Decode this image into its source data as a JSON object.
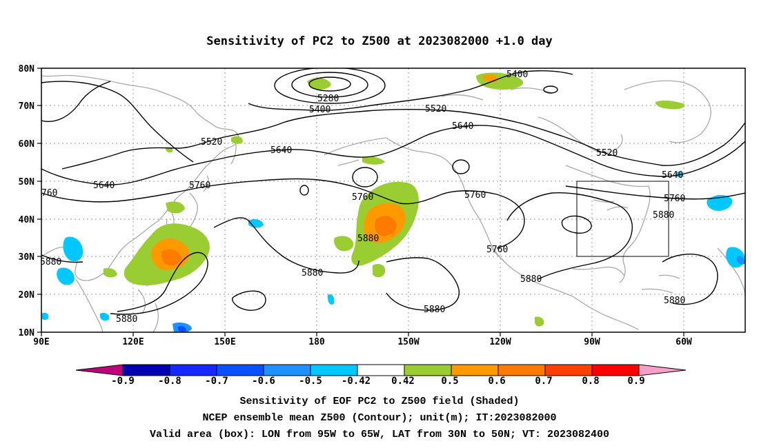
{
  "title": "Sensitivity of PC2 to Z500 at 2023082000 +1.0 day",
  "map": {
    "lat_labels": [
      "80N",
      "70N",
      "60N",
      "50N",
      "40N",
      "30N",
      "20N",
      "10N"
    ],
    "lon_labels": [
      "90E",
      "120E",
      "150E",
      "180",
      "150W",
      "120W",
      "90W",
      "60W"
    ],
    "contour_labels": [
      "5280",
      "5400",
      "5400",
      "5520",
      "5520",
      "5520",
      "5640",
      "5640",
      "5640",
      "5640",
      "5760",
      "5760",
      "5760",
      "5760",
      "5760",
      "760",
      "5880",
      "5880",
      "5880",
      "5880",
      "5880",
      "5880",
      "5880",
      "5880"
    ],
    "valid_box": {
      "lon_from": "95W",
      "lon_to": "65W",
      "lat_from": "30N",
      "lat_to": "50N"
    }
  },
  "colorbar": {
    "labels": [
      "-0.9",
      "-0.8",
      "-0.7",
      "-0.6",
      "-0.5",
      "-0.42",
      "0.42",
      "0.5",
      "0.6",
      "0.7",
      "0.8",
      "0.9"
    ],
    "colors": [
      "#c0007a",
      "#0000b0",
      "#1428ff",
      "#0a50ff",
      "#1e90ff",
      "#00c8ff",
      "#ffffff",
      "#9acd32",
      "#ff9900",
      "#ff7a00",
      "#ff4000",
      "#ff0000",
      "#f5a0c8"
    ]
  },
  "captions": {
    "line1": "Sensitivity of EOF PC2 to Z500 field (Shaded)",
    "line2": "NCEP ensemble mean Z500 (Contour); unit(m); IT:2023082000",
    "line3": "Valid area (box): LON from 95W to 65W, LAT from 30N to 50N; VT: 2023082400"
  }
}
